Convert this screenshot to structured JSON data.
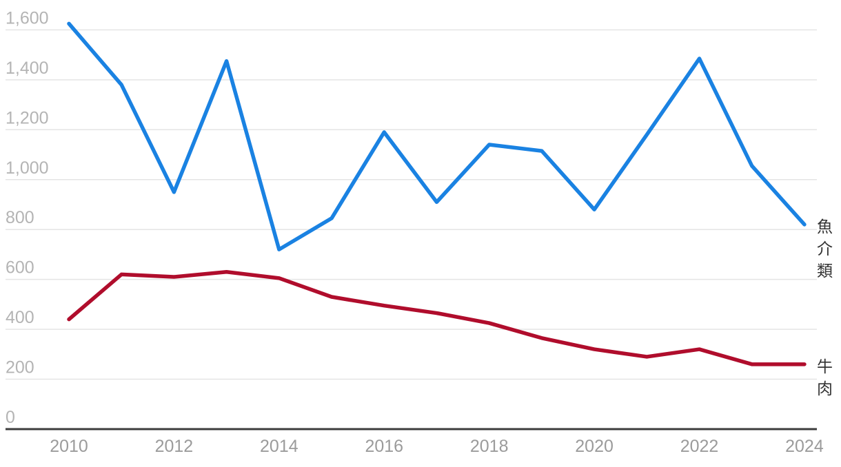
{
  "chart_data": {
    "type": "line",
    "title": "",
    "xlabel": "",
    "ylabel": "",
    "x": [
      2010,
      2011,
      2012,
      2013,
      2014,
      2015,
      2016,
      2017,
      2018,
      2019,
      2020,
      2021,
      2022,
      2023,
      2024
    ],
    "series": [
      {
        "name": "魚介類",
        "color": "#1a82e2",
        "values": [
          1625,
          1380,
          950,
          1475,
          720,
          845,
          1190,
          910,
          1140,
          1115,
          880,
          1180,
          1485,
          1055,
          820
        ]
      },
      {
        "name": "牛肉",
        "color": "#b00d2c",
        "values": [
          440,
          620,
          610,
          630,
          605,
          530,
          495,
          465,
          425,
          365,
          320,
          290,
          320,
          260,
          260
        ]
      }
    ],
    "x_tick_labels": [
      "2010",
      "2012",
      "2014",
      "2016",
      "2018",
      "2020",
      "2022",
      "2024"
    ],
    "x_tick_years": [
      2010,
      2012,
      2014,
      2016,
      2018,
      2020,
      2022,
      2024
    ],
    "y_tick_labels": [
      "0",
      "200",
      "400",
      "600",
      "800",
      "1,000",
      "1,200",
      "1,400",
      "1,600"
    ],
    "y_tick_values": [
      0,
      200,
      400,
      600,
      800,
      1000,
      1200,
      1400,
      1600
    ],
    "ylim": [
      0,
      1600
    ],
    "xlim": [
      2010,
      2024
    ],
    "grid": true,
    "legend_position": "right-edge-vertical-labels",
    "colors": {
      "gridline": "#e4e4e4",
      "axis_line": "#3c3c3c",
      "y_tick_text": "#b4b4b4",
      "x_tick_text": "#9b9b9b",
      "series_label_text": "#333333",
      "background": "#ffffff"
    }
  }
}
